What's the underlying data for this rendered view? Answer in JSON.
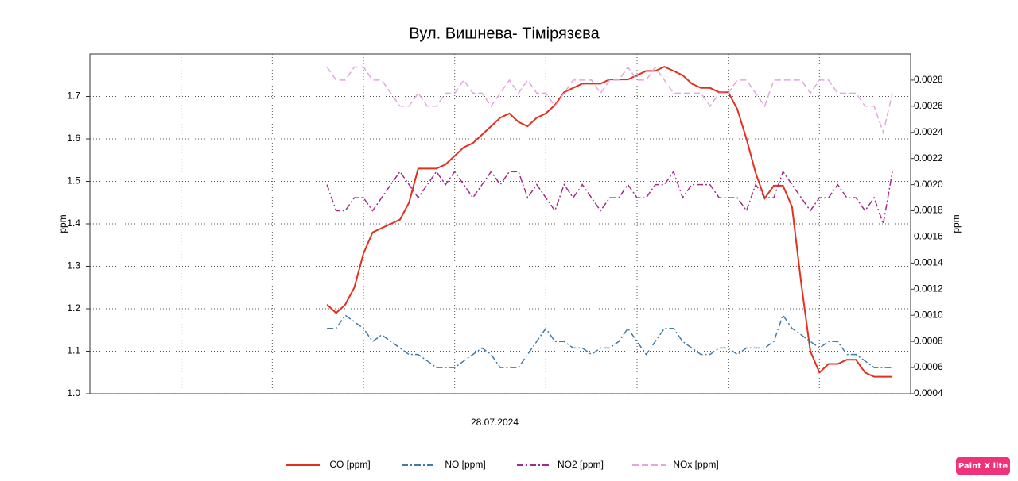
{
  "chart_data": {
    "type": "line",
    "title": "Вул. Вишнева- Тімірязєва",
    "x_label": "28.07.2024",
    "y_label": "ppm",
    "y2_label": "ppm",
    "xlim": [
      0,
      9
    ],
    "xticks": [
      1,
      2,
      3,
      4,
      5,
      6,
      7,
      8
    ],
    "ylim": [
      1.0,
      1.8
    ],
    "yticks": [
      {
        "value": 1,
        "label": "1.0"
      },
      1.1,
      1.2,
      1.3,
      1.4,
      1.5,
      1.6,
      1.7
    ],
    "y2lim": [
      0.0004,
      0.003
    ],
    "y2ticks": [
      0.0004,
      0.0006,
      0.0008,
      {
        "value": 0.001,
        "label": "0.0010"
      },
      0.0012,
      0.0014,
      0.0016,
      0.0018,
      {
        "value": 0.002,
        "label": "0.0020"
      },
      0.0022,
      0.0024,
      0.0026,
      0.0028
    ],
    "grid": true,
    "legend": "bottom",
    "x": [
      2.6,
      2.7,
      2.8,
      2.9,
      3.0,
      3.1,
      3.2,
      3.3,
      3.4,
      3.5,
      3.6,
      3.7,
      3.8,
      3.9,
      4.0,
      4.1,
      4.2,
      4.3,
      4.4,
      4.5,
      4.6,
      4.7,
      4.8,
      4.9,
      5.0,
      5.1,
      5.2,
      5.3,
      5.4,
      5.5,
      5.6,
      5.7,
      5.8,
      5.9,
      6.0,
      6.1,
      6.2,
      6.3,
      6.4,
      6.5,
      6.6,
      6.7,
      6.8,
      6.9,
      7.0,
      7.1,
      7.2,
      7.3,
      7.4,
      7.5,
      7.6,
      7.7,
      7.8,
      7.9,
      8.0,
      8.1,
      8.2,
      8.3,
      8.4,
      8.5,
      8.6,
      8.7,
      8.8
    ],
    "series": [
      {
        "name": "CO [ppm]",
        "color": "#e3301c",
        "dash": "",
        "axis": "y",
        "values": [
          1.21,
          1.19,
          1.21,
          1.25,
          1.33,
          1.38,
          1.39,
          1.4,
          1.41,
          1.45,
          1.53,
          1.53,
          1.53,
          1.54,
          1.56,
          1.58,
          1.59,
          1.61,
          1.63,
          1.65,
          1.66,
          1.64,
          1.63,
          1.65,
          1.66,
          1.68,
          1.71,
          1.72,
          1.73,
          1.73,
          1.73,
          1.74,
          1.74,
          1.74,
          1.75,
          1.76,
          1.76,
          1.77,
          1.76,
          1.75,
          1.73,
          1.72,
          1.72,
          1.71,
          1.71,
          1.67,
          1.6,
          1.52,
          1.46,
          1.49,
          1.49,
          1.44,
          1.26,
          1.1,
          1.05,
          1.07,
          1.07,
          1.08,
          1.08,
          1.05,
          1.04,
          1.04,
          1.04
        ]
      },
      {
        "name": "NO [ppm]",
        "color": "#3d7ea8",
        "dash": "8 3 2 3",
        "axis": "y2",
        "values": [
          0.0009,
          0.0009,
          0.001,
          0.00095,
          0.0009,
          0.0008,
          0.00085,
          0.0008,
          0.00075,
          0.0007,
          0.0007,
          0.00065,
          0.0006,
          0.0006,
          0.0006,
          0.00065,
          0.0007,
          0.00075,
          0.0007,
          0.0006,
          0.0006,
          0.0006,
          0.0007,
          0.0008,
          0.0009,
          0.0008,
          0.0008,
          0.00075,
          0.00075,
          0.0007,
          0.00075,
          0.00075,
          0.0008,
          0.0009,
          0.0008,
          0.0007,
          0.0008,
          0.0009,
          0.0009,
          0.0008,
          0.00075,
          0.0007,
          0.0007,
          0.00075,
          0.00075,
          0.0007,
          0.00075,
          0.00075,
          0.00075,
          0.0008,
          0.001,
          0.0009,
          0.00085,
          0.0008,
          0.00075,
          0.0008,
          0.0008,
          0.0007,
          0.0007,
          0.00065,
          0.0006,
          0.0006,
          0.0006
        ]
      },
      {
        "name": "NO2 [ppm]",
        "color": "#a52a8e",
        "dash": "8 3 2 3",
        "axis": "y2",
        "values": [
          0.002,
          0.0018,
          0.0018,
          0.0019,
          0.0019,
          0.0018,
          0.0019,
          0.002,
          0.0021,
          0.002,
          0.0019,
          0.002,
          0.0021,
          0.002,
          0.0021,
          0.002,
          0.0019,
          0.002,
          0.0021,
          0.002,
          0.0021,
          0.0021,
          0.0019,
          0.002,
          0.0019,
          0.0018,
          0.002,
          0.0019,
          0.002,
          0.0019,
          0.0018,
          0.0019,
          0.0019,
          0.002,
          0.0019,
          0.0019,
          0.002,
          0.002,
          0.0021,
          0.0019,
          0.002,
          0.002,
          0.002,
          0.0019,
          0.0019,
          0.0019,
          0.0018,
          0.002,
          0.0019,
          0.0019,
          0.0021,
          0.002,
          0.0019,
          0.0018,
          0.0019,
          0.0019,
          0.002,
          0.0019,
          0.0019,
          0.0018,
          0.0019,
          0.0017,
          0.0021
        ]
      },
      {
        "name": "NOx [ppm]",
        "color": "#e3a6e0",
        "dash": "8 4",
        "axis": "y2",
        "values": [
          0.0029,
          0.0028,
          0.0028,
          0.0029,
          0.0029,
          0.0028,
          0.0028,
          0.0027,
          0.0026,
          0.0026,
          0.0027,
          0.0026,
          0.0026,
          0.0027,
          0.0027,
          0.0028,
          0.0027,
          0.0027,
          0.0026,
          0.0027,
          0.0028,
          0.0027,
          0.0028,
          0.0027,
          0.0027,
          0.0026,
          0.0027,
          0.0028,
          0.0028,
          0.0028,
          0.0027,
          0.0028,
          0.0028,
          0.0029,
          0.0028,
          0.0028,
          0.0029,
          0.0028,
          0.0027,
          0.0027,
          0.0027,
          0.0027,
          0.0026,
          0.0027,
          0.0027,
          0.0028,
          0.0028,
          0.0027,
          0.0026,
          0.0028,
          0.0028,
          0.0028,
          0.0028,
          0.0027,
          0.0028,
          0.0028,
          0.0027,
          0.0027,
          0.0027,
          0.0026,
          0.0026,
          0.0024,
          0.0027
        ]
      }
    ]
  },
  "watermark": "Paint X lite"
}
